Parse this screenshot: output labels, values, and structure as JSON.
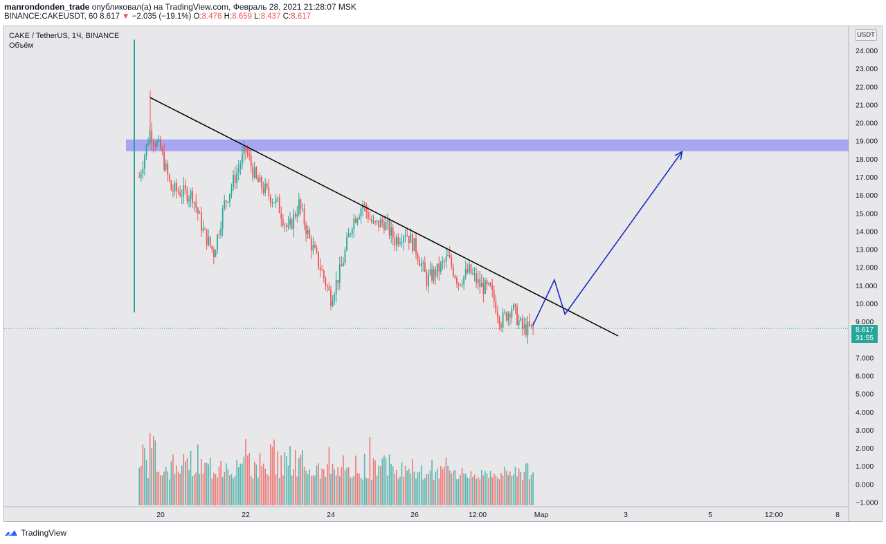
{
  "header": {
    "author": "manrondonden_trade",
    "published_text": "опубликовал(а) на TradingView.com, Февраль 28, 2021 21:28:07 MSK",
    "symbol_line": "BINANCE:CAKEUSDT, 60",
    "last": "8.617",
    "change_arrow": "▼",
    "change": "−2.035 (−19.1%)",
    "o_label": "O:",
    "o": "8.476",
    "h_label": "H:",
    "h": "8.659",
    "l_label": "L:",
    "l": "8.437",
    "c_label": "C:",
    "c": "8.617"
  },
  "legend": {
    "title": "CAKE / TetherUS, 1Ч, BINANCE",
    "volume_label": "Объём"
  },
  "scale_button": "USDT",
  "price_tag": {
    "price": "8.617",
    "countdown": "31:55"
  },
  "footer": {
    "brand": "TradingView"
  },
  "colors": {
    "up": "#26a69a",
    "down": "#ef5350",
    "resistance_zone": "#9b9bf2",
    "projection": "#1b2bc2",
    "trendline": "#000000",
    "background": "#e8e8ea"
  },
  "chart_data": {
    "type": "candlestick",
    "y_axis_ticks": [
      "24.000",
      "23.000",
      "22.000",
      "21.000",
      "20.000",
      "19.000",
      "18.000",
      "17.000",
      "16.000",
      "15.000",
      "14.000",
      "13.000",
      "12.000",
      "11.000",
      "10.000",
      "9.000",
      "8.000",
      "7.000",
      "6.000",
      "5.000",
      "4.000",
      "3.000",
      "2.000",
      "1.000",
      "0.000",
      "−1.000"
    ],
    "x_axis_ticks": [
      "20",
      "22",
      "24",
      "26",
      "12:00",
      "Мар",
      "3",
      "5",
      "12:00",
      "8"
    ],
    "ylim": [
      -1,
      24.5
    ],
    "price_path": [
      {
        "t": "Feb 19 12:00",
        "p": 17.0
      },
      {
        "t": "Feb 19 18:00",
        "p": 19.5
      },
      {
        "t": "Feb 20 00:00",
        "p": 18.5
      },
      {
        "t": "Feb 20 06:00",
        "p": 16.3
      },
      {
        "t": "Feb 20 18:00",
        "p": 16.0
      },
      {
        "t": "Feb 21 00:00",
        "p": 14.0
      },
      {
        "t": "Feb 21 06:00",
        "p": 12.8
      },
      {
        "t": "Feb 21 12:00",
        "p": 15.5
      },
      {
        "t": "Feb 21 18:00",
        "p": 17.0
      },
      {
        "t": "Feb 22 00:00",
        "p": 18.5
      },
      {
        "t": "Feb 22 06:00",
        "p": 16.8
      },
      {
        "t": "Feb 22 18:00",
        "p": 15.5
      },
      {
        "t": "Feb 23 00:00",
        "p": 14.0
      },
      {
        "t": "Feb 23 06:00",
        "p": 15.5
      },
      {
        "t": "Feb 23 12:00",
        "p": 13.5
      },
      {
        "t": "Feb 23 18:00",
        "p": 12.0
      },
      {
        "t": "Feb 24 00:00",
        "p": 10.3
      },
      {
        "t": "Feb 24 06:00",
        "p": 12.0
      },
      {
        "t": "Feb 24 12:00",
        "p": 14.5
      },
      {
        "t": "Feb 24 18:00",
        "p": 15.5
      },
      {
        "t": "Feb 25 00:00",
        "p": 14.3
      },
      {
        "t": "Feb 25 06:00",
        "p": 14.5
      },
      {
        "t": "Feb 25 12:00",
        "p": 13.5
      },
      {
        "t": "Feb 25 18:00",
        "p": 14.0
      },
      {
        "t": "Feb 26 00:00",
        "p": 13.0
      },
      {
        "t": "Feb 26 06:00",
        "p": 11.3
      },
      {
        "t": "Feb 26 12:00",
        "p": 11.8
      },
      {
        "t": "Feb 26 18:00",
        "p": 12.5
      },
      {
        "t": "Feb 27 00:00",
        "p": 11.2
      },
      {
        "t": "Feb 27 06:00",
        "p": 11.8
      },
      {
        "t": "Feb 27 12:00",
        "p": 11.0
      },
      {
        "t": "Feb 27 18:00",
        "p": 10.7
      },
      {
        "t": "Feb 28 00:00",
        "p": 9.0
      },
      {
        "t": "Feb 28 06:00",
        "p": 9.8
      },
      {
        "t": "Feb 28 12:00",
        "p": 8.6
      },
      {
        "t": "Feb 28 18:00",
        "p": 8.6
      }
    ],
    "last_price": 8.617,
    "resistance_zone": [
      18.5,
      19.0
    ],
    "trendline": {
      "from": {
        "t": "Feb 19 18:00",
        "p": 21.4
      },
      "to": {
        "t": "Mar 2 18:00",
        "p": 8.2
      }
    },
    "projection_path": [
      {
        "t": "Feb 28 18:00",
        "p": 8.8
      },
      {
        "t": "Mar 1 06:00",
        "p": 11.3
      },
      {
        "t": "Mar 1 12:00",
        "p": 9.4
      },
      {
        "t": "Mar 4 06:00",
        "p": 18.4
      }
    ],
    "volume_ylim": [
      -1,
      6
    ],
    "volume_profile": [
      {
        "t": "Feb 19 12:00",
        "v": 3.7
      },
      {
        "t": "Feb 19 18:00",
        "v": 5.5
      },
      {
        "t": "Feb 20 00:00",
        "v": 1.5
      },
      {
        "t": "Feb 21 00:00",
        "v": 2.3
      },
      {
        "t": "Feb 21 12:00",
        "v": 3.1
      },
      {
        "t": "Feb 22 00:00",
        "v": 2.5
      },
      {
        "t": "Feb 23 00:00",
        "v": 3.8
      },
      {
        "t": "Feb 23 18:00",
        "v": 1.2
      },
      {
        "t": "Feb 24 00:00",
        "v": 3.4
      },
      {
        "t": "Feb 24 12:00",
        "v": 1.5
      },
      {
        "t": "Feb 25 00:00",
        "v": 2.7
      },
      {
        "t": "Feb 26 00:00",
        "v": 1.2
      },
      {
        "t": "Feb 26 12:00",
        "v": 1.5
      },
      {
        "t": "Feb 27 00:00",
        "v": 1.4
      },
      {
        "t": "Feb 28 00:00",
        "v": 1.0
      },
      {
        "t": "Feb 28 18:00",
        "v": 1.4
      }
    ]
  }
}
